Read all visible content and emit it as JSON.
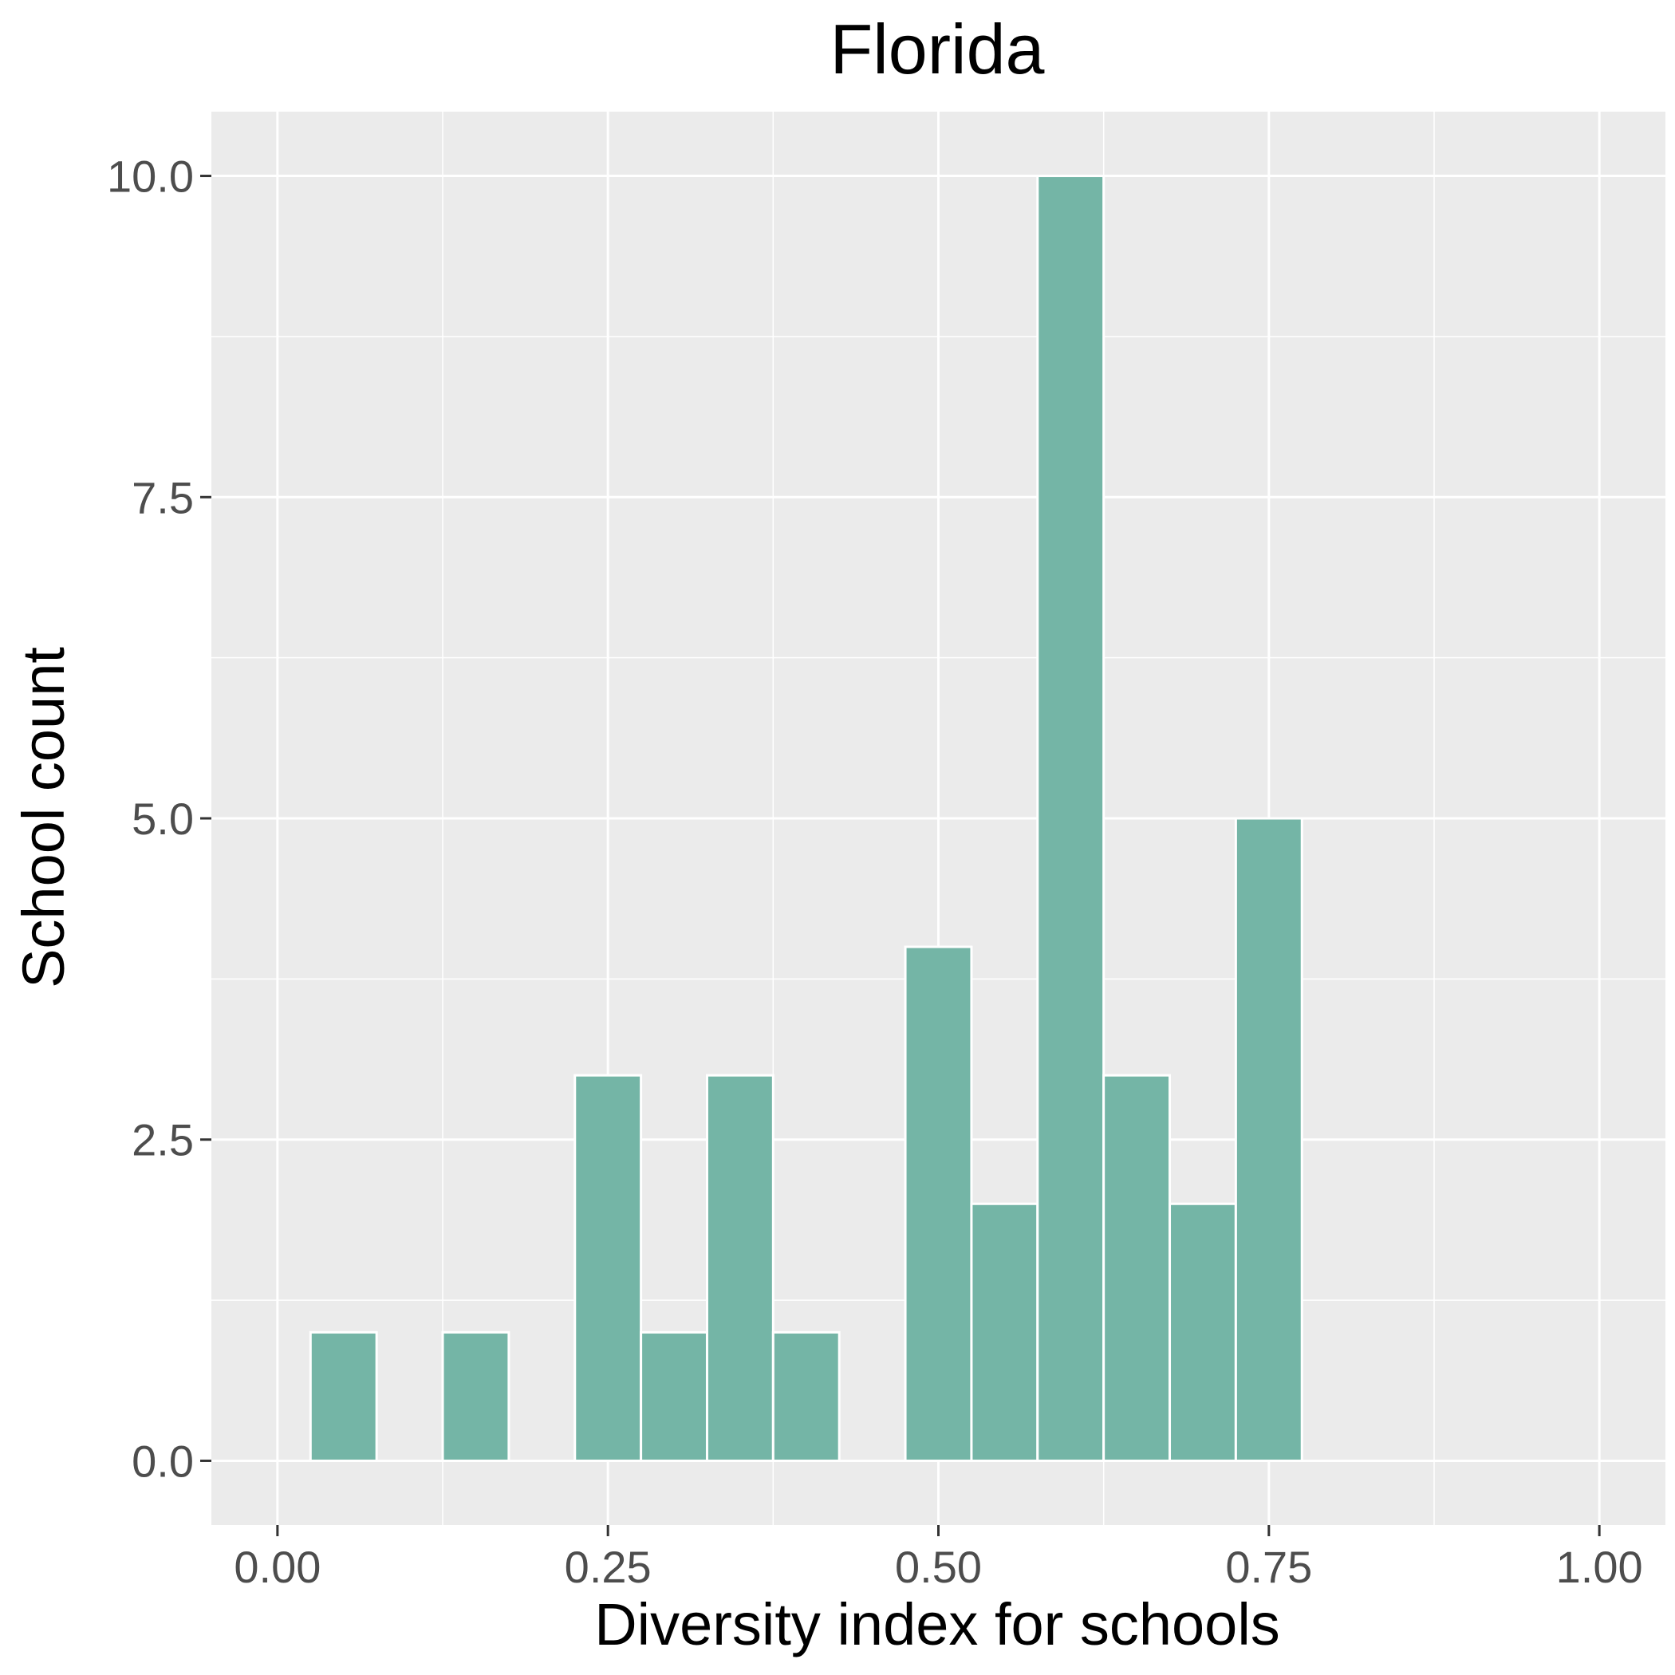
{
  "chart_data": {
    "type": "bar",
    "title": "Florida",
    "xlabel": "Diversity index for schools",
    "ylabel": "School count",
    "xlim": [
      -0.05,
      1.05
    ],
    "ylim": [
      -0.5,
      10.5
    ],
    "x_ticks": [
      0.0,
      0.25,
      0.5,
      0.75,
      1.0
    ],
    "x_tick_labels": [
      "0.00",
      "0.25",
      "0.50",
      "0.75",
      "1.00"
    ],
    "y_ticks": [
      0.0,
      2.5,
      5.0,
      7.5,
      10.0
    ],
    "y_tick_labels": [
      "0.0",
      "2.5",
      "5.0",
      "7.5",
      "10.0"
    ],
    "bin_width": 0.05,
    "bin_centers": [
      0.05,
      0.1,
      0.15,
      0.2,
      0.25,
      0.3,
      0.35,
      0.4,
      0.45,
      0.5,
      0.55,
      0.6,
      0.65,
      0.7,
      0.75,
      0.8,
      0.85,
      0.9,
      0.95
    ],
    "values": [
      1,
      0,
      1,
      0,
      3,
      1,
      3,
      1,
      0,
      4,
      2,
      10,
      3,
      2,
      5,
      0,
      0,
      0,
      0
    ],
    "grid": true,
    "colors": {
      "bar_fill": "#74b5a6",
      "panel_background": "#ebebeb",
      "grid_line": "#ffffff",
      "tick_label": "#4d4d4d",
      "tick_mark": "#333333"
    }
  }
}
